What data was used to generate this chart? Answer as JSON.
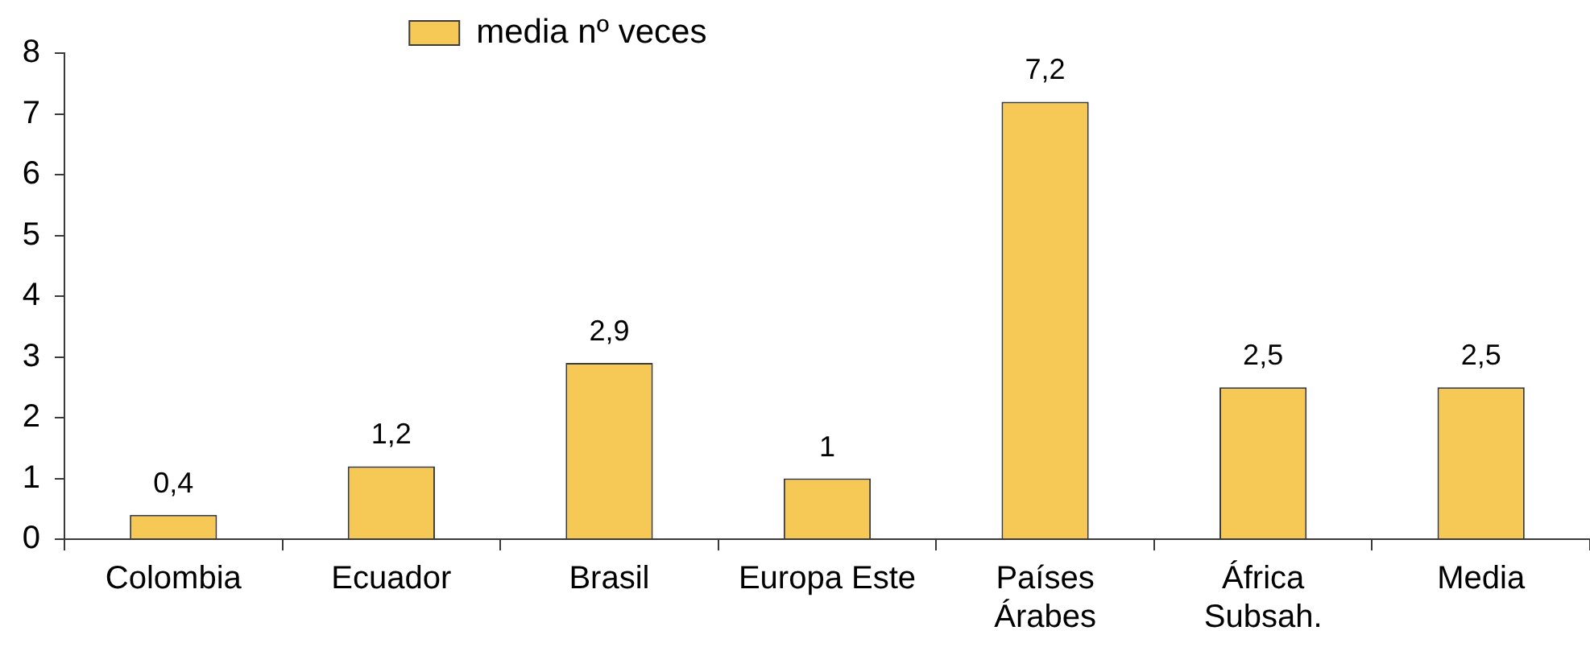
{
  "chart_data": {
    "type": "bar",
    "categories": [
      "Colombia",
      "Ecuador",
      "Brasil",
      "Europa Este",
      "Países Árabes",
      "África Subsah.",
      "Media"
    ],
    "series": [
      {
        "name": "media nº veces",
        "color": "#f6c957",
        "values": [
          0.4,
          1.2,
          2.9,
          1,
          7.2,
          2.5,
          2.5
        ],
        "value_labels": [
          "0,4",
          "1,2",
          "2,9",
          "1",
          "7,2",
          "2,5",
          "2,5"
        ]
      }
    ],
    "ylim": [
      0,
      8
    ],
    "yticks": [
      0,
      1,
      2,
      3,
      4,
      5,
      6,
      7,
      8
    ],
    "legend": "top"
  }
}
